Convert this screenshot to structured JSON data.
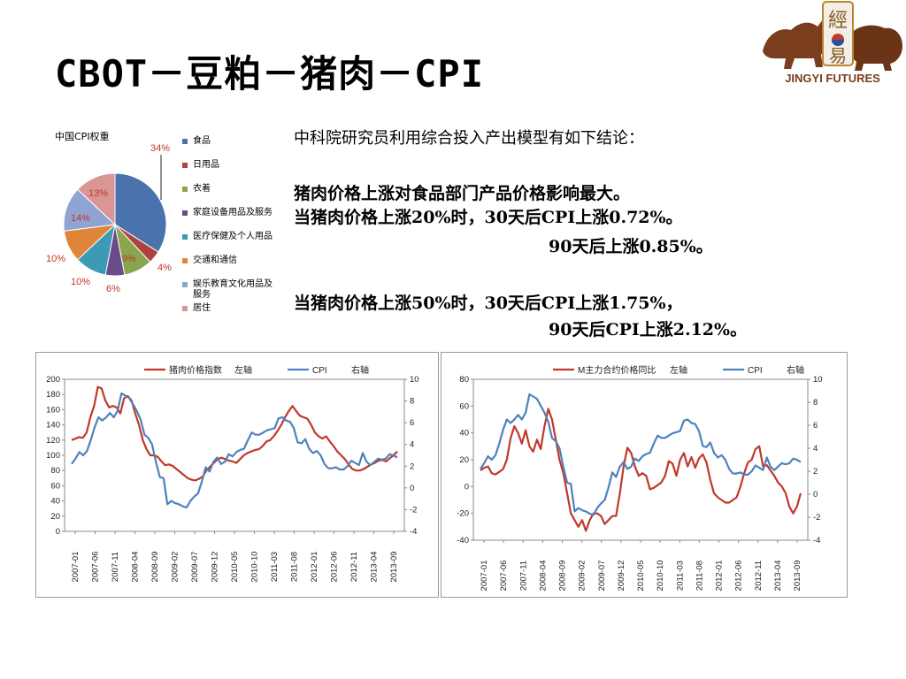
{
  "slide": {
    "title": "CBOT－豆粕－猪肉－CPI",
    "logo_text": "JINGYI FUTURES",
    "logo_chars": [
      "經",
      "易"
    ]
  },
  "conclusions": {
    "intro": "中科院研究员利用综合投入产出模型有如下结论：",
    "line1": "猪肉价格上涨对食品部门产品价格影响最大。",
    "line2": "当猪肉价格上涨20%时，30天后CPI上涨0.72%。",
    "line3": "90天后上涨0.85%。",
    "line4": "当猪肉价格上涨50%时，30天后CPI上涨1.75%，",
    "line5": "90天后CPI上涨2.12%。"
  },
  "chart_data": [
    {
      "type": "pie",
      "title": "中国CPI权重",
      "labels": [
        "食品",
        "日用品",
        "衣着",
        "家庭设备用品及服务",
        "医疗保健及个人用品",
        "交通和通信",
        "娱乐教育文化用品及服务",
        "居住"
      ],
      "values": [
        34,
        4,
        9,
        6,
        10,
        10,
        14,
        13
      ],
      "value_labels": [
        "34%",
        "4%",
        "9%",
        "6%",
        "10%",
        "10%",
        "14%",
        "13%"
      ],
      "colors": [
        "#4a72ac",
        "#b0413e",
        "#89a54e",
        "#6b4c8a",
        "#3d9ab5",
        "#e0843a",
        "#8fa4d2",
        "#d99694"
      ],
      "legend": "right"
    },
    {
      "type": "line",
      "x_ticks": [
        "2007-01",
        "2007-06",
        "2007-11",
        "2008-04",
        "2008-09",
        "2009-02",
        "2009-07",
        "2009-12",
        "2010-05",
        "2010-10",
        "2011-03",
        "2011-08",
        "2012-01",
        "2012-06",
        "2012-11",
        "2013-04",
        "2013-09"
      ],
      "left_ylim": [
        0,
        200
      ],
      "left_ticks": [
        0,
        20,
        40,
        60,
        80,
        100,
        120,
        140,
        160,
        180,
        200
      ],
      "right_ylim": [
        -4,
        10
      ],
      "right_ticks": [
        -4,
        -2,
        0,
        2,
        4,
        6,
        8,
        10
      ],
      "legend": "top",
      "series": [
        {
          "name": "猪肉价格指数",
          "axis_label": "左轴",
          "axis": "left",
          "color": "#c0392b",
          "values": [
            120,
            122,
            124,
            123,
            130,
            150,
            165,
            190,
            188,
            172,
            163,
            165,
            163,
            155,
            175,
            178,
            172,
            155,
            140,
            120,
            108,
            100,
            100,
            98,
            92,
            87,
            88,
            86,
            82,
            78,
            74,
            70,
            68,
            67,
            69,
            72,
            80,
            85,
            90,
            95,
            97,
            95,
            93,
            92,
            90,
            95,
            100,
            103,
            105,
            107,
            108,
            112,
            118,
            120,
            125,
            132,
            140,
            150,
            158,
            165,
            158,
            152,
            150,
            148,
            140,
            130,
            125,
            122,
            125,
            118,
            112,
            105,
            100,
            95,
            88,
            82,
            80,
            80,
            82,
            85,
            88,
            90,
            93,
            94,
            92,
            96,
            100,
            105
          ]
        },
        {
          "name": "CPI",
          "axis_label": "右轴",
          "axis": "right",
          "color": "#4f81bd",
          "values": [
            2.2,
            2.7,
            3.3,
            3.0,
            3.4,
            4.4,
            5.6,
            6.5,
            6.2,
            6.5,
            6.9,
            6.5,
            7.1,
            8.7,
            8.5,
            8.3,
            7.7,
            7.1,
            6.3,
            4.9,
            4.6,
            4.0,
            2.4,
            1.0,
            0.9,
            -1.5,
            -1.2,
            -1.4,
            -1.5,
            -1.7,
            -1.8,
            -1.2,
            -0.8,
            -0.5,
            0.6,
            1.9,
            1.5,
            2.4,
            2.8,
            2.2,
            2.4,
            3.1,
            2.9,
            3.3,
            3.5,
            3.6,
            4.4,
            5.1,
            4.9,
            4.9,
            5.1,
            5.3,
            5.4,
            5.5,
            6.4,
            6.5,
            6.2,
            6.1,
            5.5,
            4.2,
            4.1,
            4.5,
            3.6,
            3.2,
            3.4,
            3.0,
            2.2,
            1.8,
            1.8,
            1.9,
            1.7,
            1.7,
            2.0,
            2.5,
            2.3,
            2.1,
            3.2,
            2.4,
            2.1,
            2.4,
            2.7,
            2.6,
            2.7,
            3.1,
            3.0,
            2.8
          ]
        }
      ]
    },
    {
      "type": "line",
      "x_ticks": [
        "2007-01",
        "2007-06",
        "2007-11",
        "2008-04",
        "2008-09",
        "2009-02",
        "2009-07",
        "2009-12",
        "2010-05",
        "2010-10",
        "2011-03",
        "2011-08",
        "2012-01",
        "2012-06",
        "2012-11",
        "2013-04",
        "2013-09"
      ],
      "left_ylim": [
        -40,
        80
      ],
      "left_ticks": [
        -40,
        -20,
        0,
        20,
        40,
        60,
        80
      ],
      "right_ylim": [
        -4,
        10
      ],
      "right_ticks": [
        -4,
        -2,
        0,
        2,
        4,
        6,
        8,
        10
      ],
      "legend": "top",
      "series": [
        {
          "name": "M主力合约价格同比",
          "axis_label": "左轴",
          "axis": "left",
          "color": "#c0392b",
          "values": [
            12,
            14,
            15,
            10,
            9,
            11,
            13,
            20,
            36,
            45,
            40,
            32,
            42,
            30,
            26,
            35,
            28,
            45,
            58,
            50,
            35,
            20,
            10,
            -5,
            -20,
            -25,
            -30,
            -25,
            -33,
            -25,
            -20,
            -20,
            -22,
            -28,
            -25,
            -22,
            -22,
            -5,
            15,
            29,
            25,
            15,
            8,
            10,
            8,
            -2,
            -1,
            1,
            3,
            8,
            19,
            17,
            8,
            20,
            25,
            15,
            22,
            14,
            21,
            24,
            18,
            5,
            -5,
            -8,
            -10,
            -12,
            -12,
            -10,
            -8,
            0,
            10,
            18,
            20,
            28,
            30,
            15,
            16,
            12,
            8,
            3,
            0,
            -5,
            -15,
            -20,
            -15,
            -5
          ]
        },
        {
          "name": "CPI",
          "axis_label": "右轴",
          "axis": "right",
          "color": "#4f81bd",
          "values": [
            2.2,
            2.7,
            3.3,
            3.0,
            3.4,
            4.4,
            5.6,
            6.5,
            6.2,
            6.5,
            6.9,
            6.5,
            7.1,
            8.7,
            8.5,
            8.3,
            7.7,
            7.1,
            6.3,
            4.9,
            4.6,
            4.0,
            2.4,
            1.0,
            0.9,
            -1.5,
            -1.2,
            -1.4,
            -1.5,
            -1.7,
            -1.8,
            -1.2,
            -0.8,
            -0.5,
            0.6,
            1.9,
            1.5,
            2.4,
            2.8,
            2.2,
            2.4,
            3.1,
            2.9,
            3.3,
            3.5,
            3.6,
            4.4,
            5.1,
            4.9,
            4.9,
            5.1,
            5.3,
            5.4,
            5.5,
            6.4,
            6.5,
            6.2,
            6.1,
            5.5,
            4.2,
            4.1,
            4.5,
            3.6,
            3.2,
            3.4,
            3.0,
            2.2,
            1.8,
            1.8,
            1.9,
            1.7,
            1.7,
            2.0,
            2.5,
            2.3,
            2.1,
            3.2,
            2.4,
            2.1,
            2.4,
            2.7,
            2.6,
            2.7,
            3.1,
            3.0,
            2.8
          ]
        }
      ]
    }
  ]
}
